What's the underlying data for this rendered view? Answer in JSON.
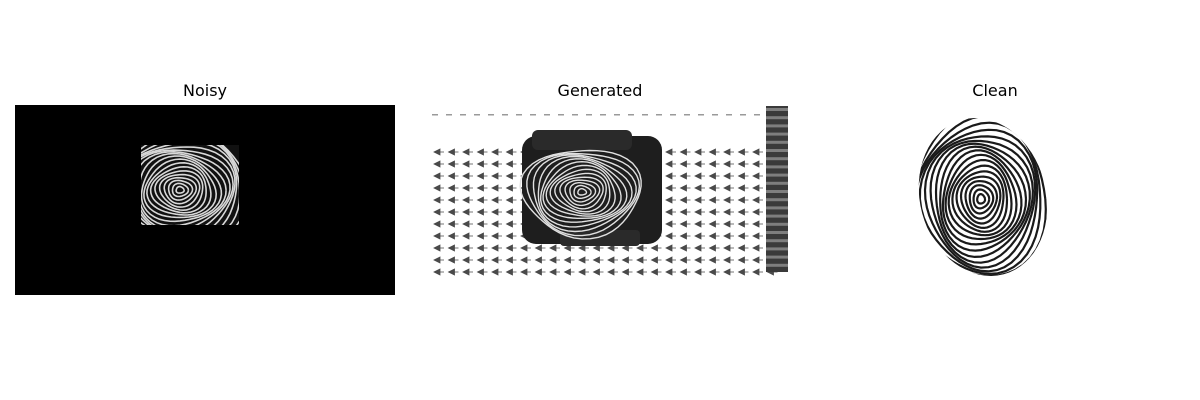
{
  "panels": [
    {
      "id": "noisy",
      "title": "Noisy"
    },
    {
      "id": "generated",
      "title": "Generated"
    },
    {
      "id": "clean",
      "title": "Clean"
    }
  ],
  "colors": {
    "background": "#ffffff",
    "noisy_fill": "#000000",
    "ridge_light": "#d8d8d8",
    "ridge_dark": "#1a1a1a",
    "artifact": "#5a5a5a"
  }
}
